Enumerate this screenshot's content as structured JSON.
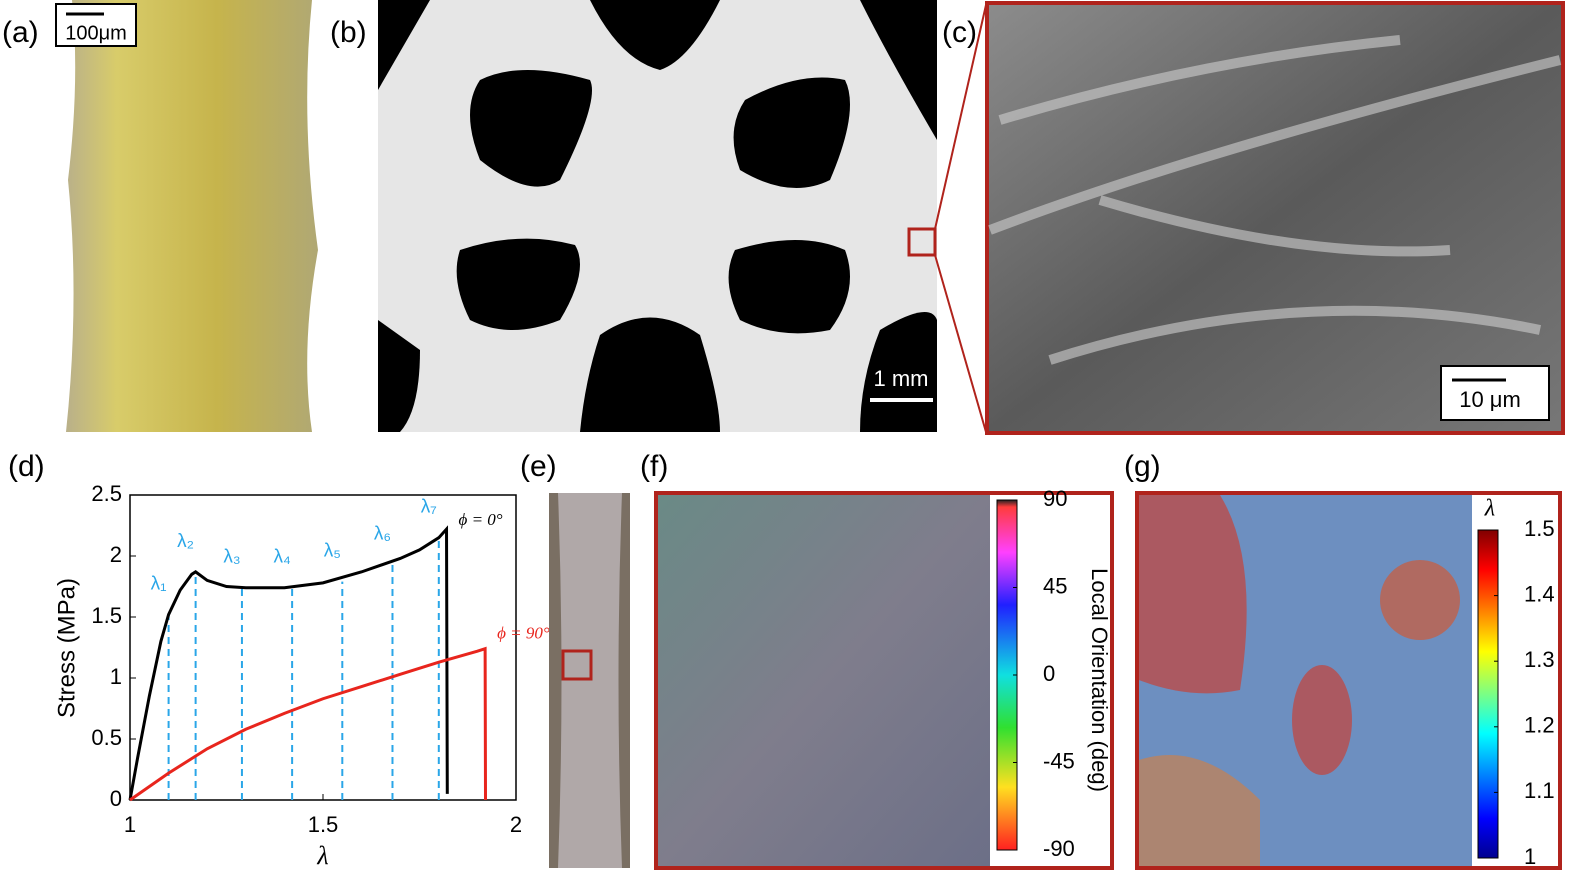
{
  "panels": {
    "a": {
      "label": "(a)",
      "scale_bar": "100μm"
    },
    "b": {
      "label": "(b)",
      "scale_bar": "1 mm"
    },
    "c": {
      "label": "(c)",
      "scale_bar": "10 μm"
    },
    "d": {
      "label": "(d)"
    },
    "e": {
      "label": "(e)"
    },
    "f": {
      "label": "(f)",
      "colorbar_label": "Local Orientation (deg)",
      "colorbar_lim": [
        -90,
        90
      ],
      "colorbar_ticks": [
        90,
        45,
        0,
        -45,
        -90
      ]
    },
    "g": {
      "label": "(g)",
      "colorbar_label": "λ",
      "colorbar_lim": [
        1,
        1.5
      ],
      "colorbar_ticks": [
        1.5,
        1.4,
        1.3,
        1.2,
        1.1,
        1
      ]
    }
  },
  "chart_data": {
    "type": "line",
    "xlabel": "λ",
    "ylabel": "Stress (MPa)",
    "xlim": [
      1,
      2
    ],
    "ylim": [
      0,
      2.5
    ],
    "xticks": [
      1,
      1.5,
      2
    ],
    "yticks": [
      0,
      0.5,
      1,
      1.5,
      2,
      2.5
    ],
    "series": [
      {
        "name": "ϕ = 0°",
        "color": "#000000",
        "x": [
          1.0,
          1.02,
          1.05,
          1.08,
          1.1,
          1.13,
          1.16,
          1.17,
          1.2,
          1.25,
          1.3,
          1.4,
          1.5,
          1.6,
          1.7,
          1.75,
          1.8,
          1.82,
          1.822
        ],
        "values": [
          0,
          0.35,
          0.85,
          1.3,
          1.52,
          1.72,
          1.85,
          1.87,
          1.8,
          1.75,
          1.74,
          1.74,
          1.78,
          1.87,
          1.98,
          2.05,
          2.15,
          2.22,
          0.05
        ]
      },
      {
        "name": "ϕ = 90°",
        "color": "#e8251d",
        "x": [
          1.0,
          1.1,
          1.2,
          1.3,
          1.4,
          1.5,
          1.6,
          1.7,
          1.8,
          1.9,
          1.92,
          1.921
        ],
        "values": [
          0,
          0.22,
          0.42,
          0.58,
          0.71,
          0.83,
          0.93,
          1.03,
          1.13,
          1.22,
          1.24,
          0
        ]
      }
    ],
    "markers": [
      {
        "label": "λ₁",
        "x": 1.1,
        "y": 1.52
      },
      {
        "label": "λ₂",
        "x": 1.17,
        "y": 1.87
      },
      {
        "label": "λ₃",
        "x": 1.29,
        "y": 1.74
      },
      {
        "label": "λ₄",
        "x": 1.42,
        "y": 1.74
      },
      {
        "label": "λ₅",
        "x": 1.55,
        "y": 1.79
      },
      {
        "label": "λ₆",
        "x": 1.68,
        "y": 1.93
      },
      {
        "label": "λ₇",
        "x": 1.8,
        "y": 2.15
      }
    ]
  }
}
